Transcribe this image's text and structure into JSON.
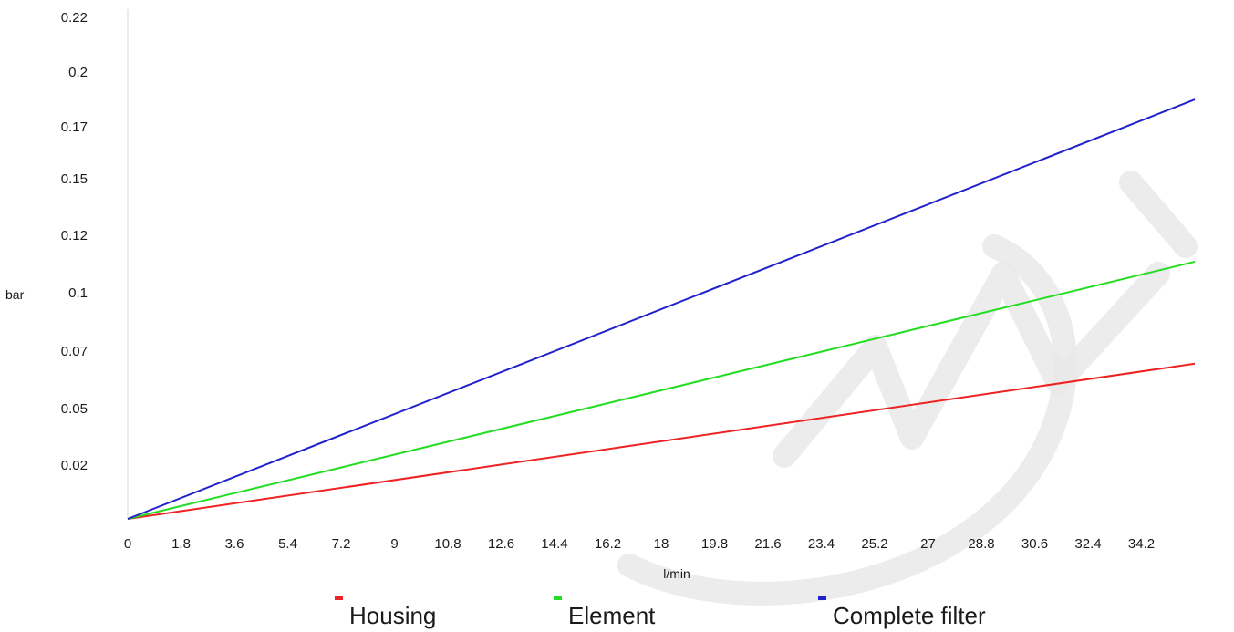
{
  "chart_data": {
    "type": "line",
    "title": "",
    "xlabel": "l/min",
    "ylabel": "bar",
    "x_tick_labels": [
      "0",
      "1.8",
      "3.6",
      "5.4",
      "7.2",
      "9",
      "10.8",
      "12.6",
      "14.4",
      "16.2",
      "18",
      "19.8",
      "21.6",
      "23.4",
      "25.2",
      "27",
      "28.8",
      "30.6",
      "32.4",
      "34.2"
    ],
    "y_tick_labels": [
      "0.02",
      "0.05",
      "0.07",
      "0.1",
      "0.12",
      "0.15",
      "0.17",
      "0.2",
      "0.22"
    ],
    "xlim": [
      0,
      36
    ],
    "ylim": [
      0,
      0.22
    ],
    "grid": false,
    "legend_position": "bottom",
    "x": [
      0,
      36
    ],
    "series": [
      {
        "name": "Housing",
        "color": "#ee2222",
        "values": [
          0,
          0.067
        ]
      },
      {
        "name": "Element",
        "color": "#22dd22",
        "values": [
          0,
          0.111
        ]
      },
      {
        "name": "Complete filter",
        "color": "#2222cc",
        "values": [
          0,
          0.181
        ]
      }
    ]
  }
}
